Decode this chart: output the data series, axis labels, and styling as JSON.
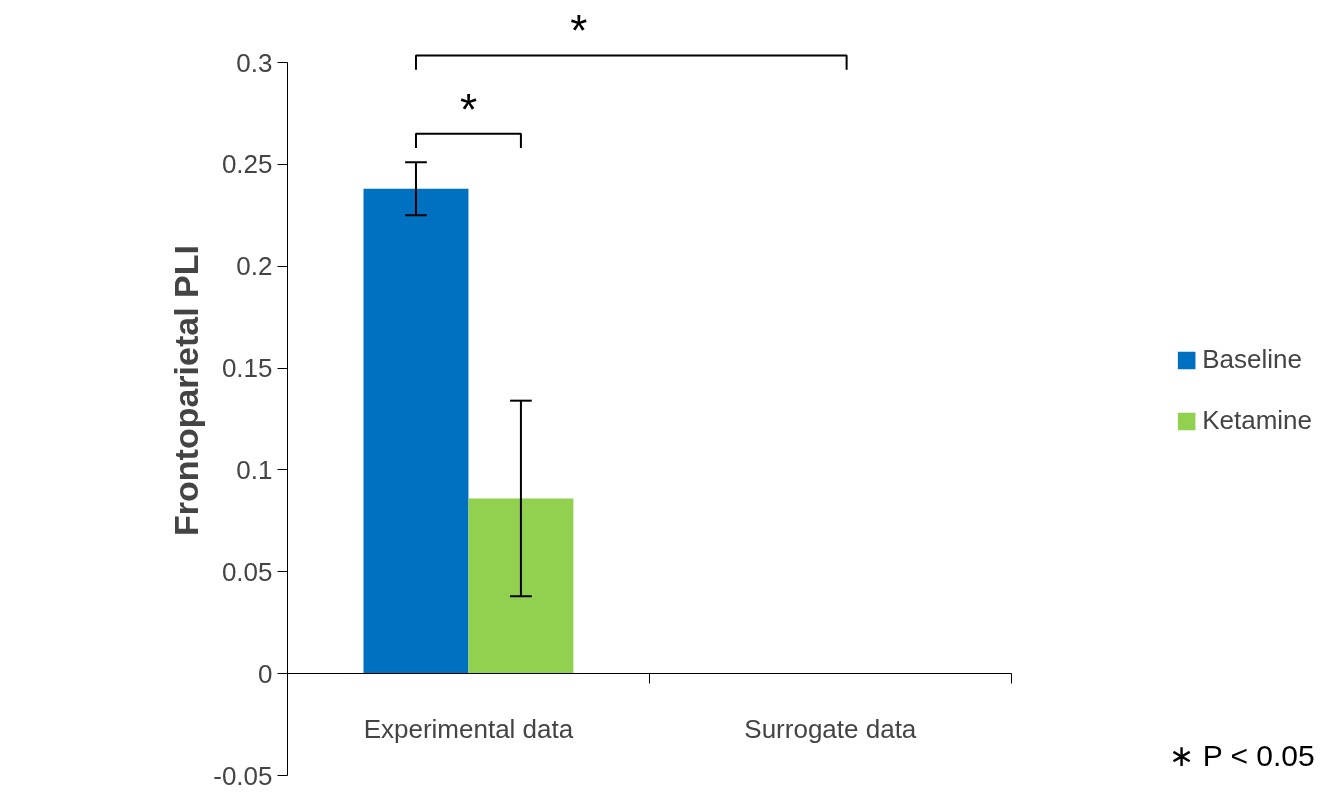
{
  "chart_data": {
    "type": "bar",
    "ylabel": "Frontoparietal PLI",
    "categories": [
      "Experimental data",
      "Surrogate data"
    ],
    "series": [
      {
        "name": "Baseline",
        "color": "#0070c0",
        "values": [
          0.238,
          null
        ],
        "errors": [
          0.013,
          null
        ]
      },
      {
        "name": "Ketamine",
        "color": "#92d050",
        "values": [
          0.086,
          null
        ],
        "errors": [
          0.048,
          null
        ]
      }
    ],
    "ylim": [
      -0.05,
      0.3
    ],
    "yticks": [
      {
        "value": -0.05,
        "label": "-0.05"
      },
      0,
      0.05,
      0.1,
      0.15,
      0.2,
      0.25,
      0.3
    ],
    "grid": false,
    "legend": "right",
    "annotations": [
      "*",
      "*",
      "∗ P < 0.05"
    ]
  }
}
